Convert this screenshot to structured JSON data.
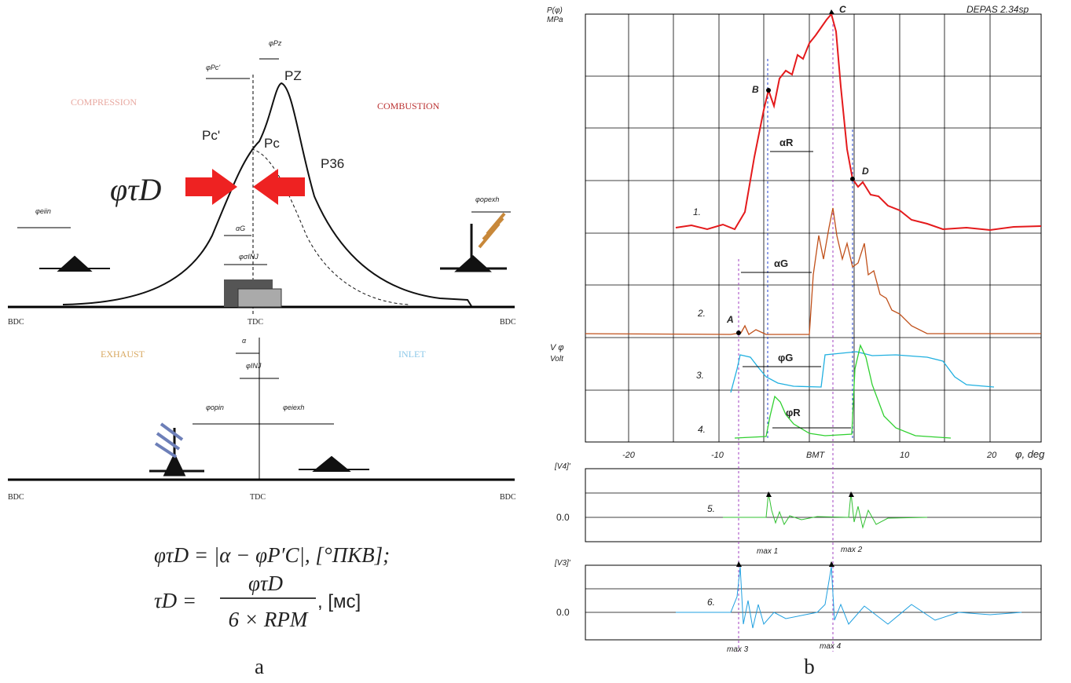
{
  "left": {
    "phases": [
      "COMPRESSION",
      "COMBUSTION",
      "EXHAUST",
      "INLET"
    ],
    "points": [
      "PZ",
      "Pc'",
      "Pc",
      "P36"
    ],
    "big_label": "φτD",
    "angles": [
      "φPz",
      "φPc'",
      "αG",
      "φσINJ",
      "α",
      "φINJ",
      "φeiin",
      "φopexh",
      "φopin",
      "φeiexh"
    ],
    "dead_centers": [
      "BDC",
      "TDC",
      "BDC",
      "BDC",
      "TDC",
      "BDC"
    ]
  },
  "formula": [
    "φτD = |α − φP′C|, [°ПКВ];",
    "τD =",
    "φτD",
    "6 × RPM",
    ", [мс]"
  ],
  "captions": [
    "a",
    "b"
  ],
  "right": {
    "y_label": [
      "P(φ)",
      "MPa"
    ],
    "software": "DEPAS 2.34sp",
    "points": [
      "C",
      "B",
      "D",
      "A"
    ],
    "intervals": [
      "αR",
      "αG",
      "φG",
      "φR"
    ],
    "traces": [
      "1.",
      "2.",
      "3.",
      "4.",
      "5.",
      "6."
    ],
    "xticks": [
      "-20",
      "-10",
      "BMT",
      "10",
      "20"
    ],
    "x_label": "φ, deg",
    "volt_label": [
      "V φ",
      "Volt"
    ],
    "panel5": {
      "label": "[V4]'",
      "zero": "0.0",
      "peaks": [
        "max 1",
        "max 2"
      ]
    },
    "panel6": {
      "label": "[V3]'",
      "zero": "0.0",
      "peaks": [
        "max 3",
        "max 4"
      ]
    }
  }
}
